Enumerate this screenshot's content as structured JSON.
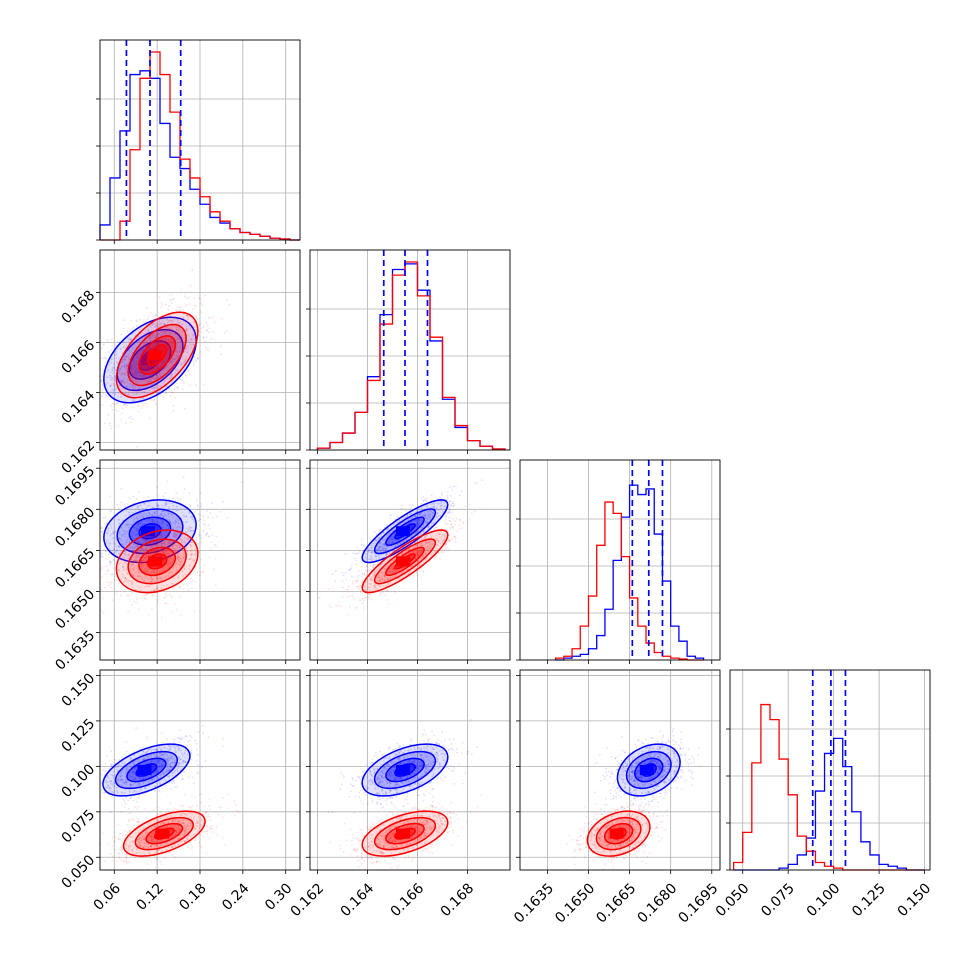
{
  "chart_data": {
    "type": "corner",
    "colors": {
      "series_a": "#0000ff",
      "series_b": "#ff0000",
      "grid": "#b0b0b0",
      "frame": "#000000"
    },
    "grid": true,
    "parameters": [
      {
        "ticks": [
          0.06,
          0.12,
          0.18,
          0.24,
          0.3
        ],
        "tick_labels": [
          "0.06",
          "0.12",
          "0.18",
          "0.24",
          "0.30"
        ],
        "range": [
          0.04,
          0.32
        ]
      },
      {
        "ticks": [
          0.162,
          0.164,
          0.166,
          0.168
        ],
        "tick_labels": [
          "0.162",
          "0.164",
          "0.166",
          "0.168"
        ],
        "range": [
          0.1617,
          0.1697
        ]
      },
      {
        "ticks": [
          0.1635,
          0.165,
          0.1665,
          0.168,
          0.1695
        ],
        "tick_labels": [
          "0.1635",
          "0.1650",
          "0.1665",
          "0.1680",
          "0.1695"
        ],
        "range": [
          0.1625,
          0.1698
        ]
      },
      {
        "ticks": [
          0.05,
          0.075,
          0.1,
          0.125,
          0.15
        ],
        "tick_labels": [
          "0.050",
          "0.075",
          "0.100",
          "0.125",
          "0.150"
        ],
        "range": [
          0.043,
          0.153
        ]
      }
    ],
    "marginals": [
      {
        "series": [
          {
            "color": "blue",
            "quantiles": [
              0.077,
              0.11,
              0.153
            ],
            "bins_x": [
              0.04,
              0.054,
              0.068,
              0.082,
              0.096,
              0.11,
              0.124,
              0.138,
              0.152,
              0.166,
              0.18,
              0.194,
              0.208,
              0.222,
              0.236,
              0.25,
              0.264,
              0.278,
              0.292,
              0.306,
              0.32
            ],
            "heights": [
              0.08,
              0.33,
              0.58,
              0.88,
              0.9,
              0.86,
              0.62,
              0.44,
              0.38,
              0.27,
              0.19,
              0.12,
              0.09,
              0.06,
              0.04,
              0.03,
              0.02,
              0.01,
              0.005,
              0.0
            ]
          },
          {
            "color": "red",
            "bins_x": [
              0.04,
              0.054,
              0.068,
              0.082,
              0.096,
              0.11,
              0.124,
              0.138,
              0.152,
              0.166,
              0.18,
              0.194,
              0.208,
              0.222,
              0.236,
              0.25,
              0.264,
              0.278,
              0.292,
              0.306,
              0.32
            ],
            "heights": [
              0.0,
              0.0,
              0.1,
              0.48,
              0.86,
              1.0,
              0.88,
              0.68,
              0.43,
              0.33,
              0.23,
              0.15,
              0.1,
              0.06,
              0.04,
              0.03,
              0.02,
              0.01,
              0.005,
              0.0
            ]
          }
        ]
      },
      {
        "series": [
          {
            "color": "blue",
            "quantiles": [
              0.16465,
              0.1655,
              0.1664
            ],
            "bins_x": [
              0.162,
              0.1625,
              0.163,
              0.1635,
              0.164,
              0.1645,
              0.165,
              0.1655,
              0.166,
              0.1665,
              0.167,
              0.1675,
              0.168,
              0.1685,
              0.169,
              0.1695
            ],
            "heights": [
              0.01,
              0.04,
              0.09,
              0.2,
              0.39,
              0.72,
              0.96,
              0.99,
              0.85,
              0.58,
              0.27,
              0.12,
              0.05,
              0.02,
              0.005
            ]
          },
          {
            "color": "red",
            "bins_x": [
              0.162,
              0.1625,
              0.163,
              0.1635,
              0.164,
              0.1645,
              0.165,
              0.1655,
              0.166,
              0.1665,
              0.167,
              0.1675,
              0.168,
              0.1685,
              0.169,
              0.1695
            ],
            "heights": [
              0.01,
              0.04,
              0.09,
              0.2,
              0.37,
              0.67,
              0.93,
              1.0,
              0.82,
              0.6,
              0.28,
              0.13,
              0.05,
              0.02,
              0.005
            ]
          }
        ]
      },
      {
        "series": [
          {
            "color": "blue",
            "quantiles": [
              0.1666,
              0.1672,
              0.1677
            ],
            "bins_x": [
              0.1638,
              0.1641,
              0.1644,
              0.1647,
              0.165,
              0.1653,
              0.1656,
              0.1659,
              0.1662,
              0.1665,
              0.1668,
              0.1671,
              0.1674,
              0.1677,
              0.168,
              0.1683,
              0.1686,
              0.1689,
              0.1692
            ],
            "heights": [
              0.0,
              0.01,
              0.02,
              0.03,
              0.06,
              0.13,
              0.27,
              0.53,
              0.76,
              0.93,
              0.88,
              0.91,
              0.67,
              0.42,
              0.18,
              0.1,
              0.02,
              0.01
            ]
          },
          {
            "color": "red",
            "bins_x": [
              0.1638,
              0.1641,
              0.1644,
              0.1647,
              0.165,
              0.1653,
              0.1656,
              0.1659,
              0.1662,
              0.1665,
              0.1668,
              0.1671,
              0.1674,
              0.1677,
              0.168,
              0.1683,
              0.1686,
              0.1689,
              0.1692
            ],
            "heights": [
              0.01,
              0.02,
              0.06,
              0.18,
              0.34,
              0.61,
              0.84,
              0.78,
              0.55,
              0.33,
              0.18,
              0.09,
              0.04,
              0.02,
              0.01,
              0.005,
              0.0,
              0.0
            ]
          }
        ]
      },
      {
        "series": [
          {
            "color": "blue",
            "quantiles": [
              0.0885,
              0.0985,
              0.1065
            ],
            "bins_x": [
              0.045,
              0.05,
              0.055,
              0.06,
              0.065,
              0.07,
              0.075,
              0.08,
              0.085,
              0.09,
              0.095,
              0.1,
              0.105,
              0.11,
              0.115,
              0.12,
              0.125,
              0.13,
              0.135,
              0.14,
              0.145,
              0.15
            ],
            "heights": [
              0.0,
              0.0,
              0.0,
              0.0,
              0.0,
              0.01,
              0.03,
              0.08,
              0.17,
              0.42,
              0.62,
              0.7,
              0.55,
              0.31,
              0.15,
              0.08,
              0.03,
              0.02,
              0.01,
              0.0,
              0.0
            ]
          },
          {
            "color": "red",
            "bins_x": [
              0.045,
              0.05,
              0.055,
              0.06,
              0.065,
              0.07,
              0.075,
              0.08,
              0.085,
              0.09,
              0.095,
              0.1,
              0.105,
              0.11,
              0.115,
              0.12,
              0.125,
              0.13,
              0.135,
              0.14,
              0.145,
              0.15
            ],
            "heights": [
              0.04,
              0.2,
              0.57,
              0.88,
              0.8,
              0.59,
              0.4,
              0.18,
              0.1,
              0.04,
              0.02,
              0.01,
              0.0,
              0.0,
              0.0,
              0.0,
              0.0,
              0.0,
              0.0,
              0.0,
              0.0
            ]
          }
        ]
      }
    ],
    "joints": [
      {
        "row": 1,
        "col": 0,
        "blue": {
          "mean": [
            0.11,
            0.1653
          ],
          "std": [
            0.034,
            0.0009
          ],
          "rho": 0.45
        },
        "red": {
          "mean": [
            0.12,
            0.1655
          ],
          "std": [
            0.03,
            0.0009
          ],
          "rho": 0.55
        }
      },
      {
        "row": 2,
        "col": 0,
        "blue": {
          "mean": [
            0.11,
            0.1672
          ],
          "std": [
            0.034,
            0.0006
          ],
          "rho": 0.2
        },
        "red": {
          "mean": [
            0.12,
            0.1661
          ],
          "std": [
            0.03,
            0.0006
          ],
          "rho": 0.25
        }
      },
      {
        "row": 2,
        "col": 1,
        "blue": {
          "mean": [
            0.1655,
            0.1672
          ],
          "std": [
            0.0009,
            0.0006
          ],
          "rho": 0.85
        },
        "red": {
          "mean": [
            0.1655,
            0.1661
          ],
          "std": [
            0.0009,
            0.0006
          ],
          "rho": 0.85
        }
      },
      {
        "row": 3,
        "col": 0,
        "blue": {
          "mean": [
            0.105,
            0.098
          ],
          "std": [
            0.032,
            0.0075
          ],
          "rho": 0.55
        },
        "red": {
          "mean": [
            0.13,
            0.063
          ],
          "std": [
            0.03,
            0.0065
          ],
          "rho": 0.55
        }
      },
      {
        "row": 3,
        "col": 1,
        "blue": {
          "mean": [
            0.1655,
            0.098
          ],
          "std": [
            0.0009,
            0.0075
          ],
          "rho": 0.5
        },
        "red": {
          "mean": [
            0.1655,
            0.063
          ],
          "std": [
            0.0009,
            0.0065
          ],
          "rho": 0.5
        }
      },
      {
        "row": 3,
        "col": 2,
        "blue": {
          "mean": [
            0.1672,
            0.098
          ],
          "std": [
            0.0006,
            0.0075
          ],
          "rho": 0.3
        },
        "red": {
          "mean": [
            0.1661,
            0.063
          ],
          "std": [
            0.0006,
            0.0065
          ],
          "rho": 0.3
        }
      }
    ]
  }
}
